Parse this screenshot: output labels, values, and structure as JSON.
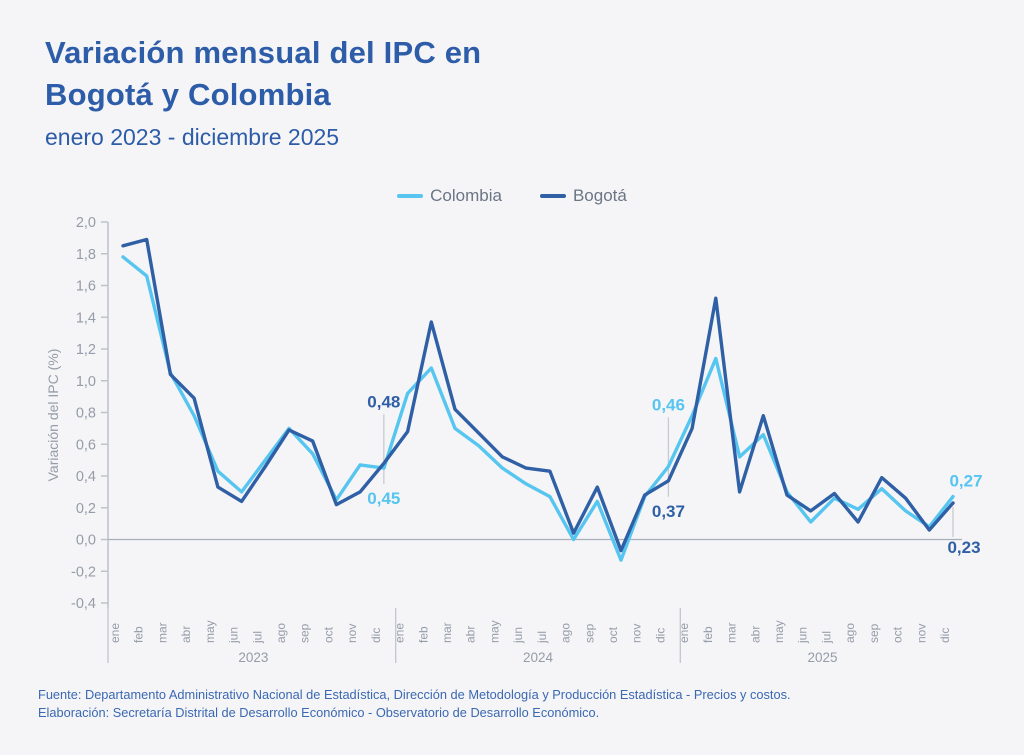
{
  "header": {
    "title_line1": "Variación mensual del IPC en",
    "title_line2": "Bogotá y Colombia",
    "subtitle": "enero 2023 - diciembre 2025"
  },
  "footer": {
    "fuente": "Fuente: Departamento Administrativo Nacional de Estadística, Dirección de Metodología y Producción Estadística - Precios y costos.",
    "elaboracion": "Elaboración: Secretaría Distrital de Desarrollo Económico - Observatorio de Desarrollo Económico."
  },
  "colors": {
    "background": "#F5F5F7",
    "title_blue": "#2D5CA8",
    "axis_gray": "#BDC2CB",
    "tick_text": "#959CA9",
    "zero_line": "#A9AFB9",
    "annotation_line": "#C6CAD1",
    "legend_text": "#6B7585",
    "footer_blue": "#3A68B2"
  },
  "chart_data": {
    "type": "line",
    "title": "Variación mensual del IPC en Bogotá y Colombia",
    "subtitle": "enero 2023 - diciembre 2025",
    "ylabel": "Variación del IPC (%)",
    "ylim": [
      -0.4,
      2.0
    ],
    "ytick_step": 0.2,
    "grid": "zero-line-only",
    "legend_position": "top-center",
    "months": [
      "ene",
      "feb",
      "mar",
      "abr",
      "may",
      "jun",
      "jul",
      "ago",
      "sep",
      "oct",
      "nov",
      "dic"
    ],
    "years": [
      "2023",
      "2024",
      "2025"
    ],
    "series": [
      {
        "name": "Colombia",
        "color": "#56C5F0",
        "values": [
          1.78,
          1.66,
          1.05,
          0.78,
          0.43,
          0.3,
          0.5,
          0.7,
          0.54,
          0.25,
          0.47,
          0.45,
          0.92,
          1.08,
          0.7,
          0.59,
          0.45,
          0.35,
          0.27,
          0.0,
          0.24,
          -0.13,
          0.27,
          0.46,
          0.78,
          1.14,
          0.52,
          0.66,
          0.3,
          0.11,
          0.26,
          0.19,
          0.32,
          0.18,
          0.08,
          0.27
        ]
      },
      {
        "name": "Bogotá",
        "color": "#2F5FA5",
        "values": [
          1.85,
          1.89,
          1.04,
          0.89,
          0.33,
          0.24,
          0.46,
          0.69,
          0.62,
          0.22,
          0.3,
          0.48,
          0.68,
          1.37,
          0.82,
          0.67,
          0.52,
          0.45,
          0.43,
          0.04,
          0.33,
          -0.07,
          0.28,
          0.37,
          0.7,
          1.52,
          0.3,
          0.78,
          0.28,
          0.18,
          0.29,
          0.11,
          0.39,
          0.26,
          0.06,
          0.23
        ]
      }
    ],
    "annotations": [
      {
        "month_index": 11,
        "style": "split",
        "labels": [
          {
            "text": "0,48",
            "series": "Bogotá",
            "position": "above"
          },
          {
            "text": "0,45",
            "series": "Colombia",
            "position": "below"
          }
        ]
      },
      {
        "month_index": 23,
        "style": "split",
        "labels": [
          {
            "text": "0,46",
            "series": "Colombia",
            "position": "above"
          },
          {
            "text": "0,37",
            "series": "Bogotá",
            "position": "below"
          }
        ]
      },
      {
        "month_index": 35,
        "style": "right",
        "labels": [
          {
            "text": "0,27",
            "series": "Colombia",
            "position": "above"
          },
          {
            "text": "0,23",
            "series": "Bogotá",
            "position": "below"
          }
        ]
      }
    ]
  }
}
